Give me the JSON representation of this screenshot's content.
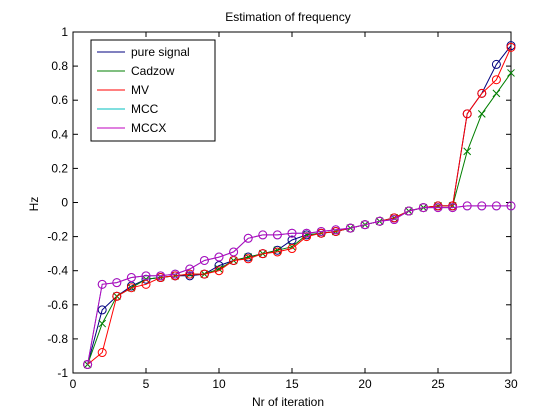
{
  "chart_data": {
    "type": "line",
    "title": "Estimation of frequency",
    "xlabel": "Nr of iteration",
    "ylabel": "Hz",
    "xlim": [
      0,
      30
    ],
    "ylim": [
      -1,
      1
    ],
    "xticks": [
      0,
      5,
      10,
      15,
      20,
      25,
      30
    ],
    "yticks": [
      -1,
      -0.8,
      -0.6,
      -0.4,
      -0.2,
      0,
      0.2,
      0.4,
      0.6,
      0.8,
      1
    ],
    "xtick_labels": [
      "0",
      "5",
      "10",
      "15",
      "20",
      "25",
      "30"
    ],
    "ytick_labels": [
      "-1",
      "-0.8",
      "-0.6",
      "-0.4",
      "-0.2",
      "0",
      "0.2",
      "0.4",
      "0.6",
      "0.8",
      "1"
    ],
    "grid": false,
    "legend_position": "top-left",
    "x": [
      1,
      2,
      3,
      4,
      5,
      6,
      7,
      8,
      9,
      10,
      11,
      12,
      13,
      14,
      15,
      16,
      17,
      18,
      19,
      20,
      21,
      22,
      23,
      24,
      25,
      26,
      27,
      28,
      29,
      30
    ],
    "series": [
      {
        "name": "pure signal",
        "color": "#00007f",
        "marker": "circle",
        "values": [
          -0.95,
          -0.63,
          -0.55,
          -0.49,
          -0.45,
          -0.44,
          -0.43,
          -0.43,
          -0.42,
          -0.37,
          -0.34,
          -0.32,
          -0.3,
          -0.28,
          -0.22,
          -0.19,
          -0.18,
          -0.17,
          -0.15,
          -0.13,
          -0.11,
          -0.09,
          -0.05,
          -0.03,
          -0.02,
          -0.02,
          0.52,
          0.64,
          0.81,
          0.92
        ]
      },
      {
        "name": "Cadzow",
        "color": "#007f00",
        "marker": "x",
        "values": [
          -0.95,
          -0.71,
          -0.55,
          -0.5,
          -0.45,
          -0.44,
          -0.43,
          -0.42,
          -0.42,
          -0.39,
          -0.34,
          -0.32,
          -0.3,
          -0.28,
          -0.26,
          -0.19,
          -0.18,
          -0.17,
          -0.15,
          -0.13,
          -0.11,
          -0.09,
          -0.05,
          -0.03,
          -0.02,
          -0.02,
          0.3,
          0.52,
          0.64,
          0.76
        ]
      },
      {
        "name": "MV",
        "color": "#ff0000",
        "marker": "circle",
        "values": [
          -0.95,
          -0.88,
          -0.55,
          -0.5,
          -0.48,
          -0.44,
          -0.43,
          -0.42,
          -0.42,
          -0.4,
          -0.34,
          -0.33,
          -0.3,
          -0.29,
          -0.27,
          -0.2,
          -0.18,
          -0.17,
          -0.15,
          -0.13,
          -0.11,
          -0.09,
          -0.05,
          -0.03,
          -0.02,
          -0.02,
          0.52,
          0.64,
          0.72,
          0.91
        ]
      },
      {
        "name": "MCC",
        "color": "#00bfbf",
        "marker": "circle",
        "values": [
          -0.95,
          -0.48,
          -0.47,
          -0.44,
          -0.43,
          -0.43,
          -0.42,
          -0.39,
          -0.34,
          -0.32,
          -0.29,
          -0.21,
          -0.19,
          -0.19,
          -0.18,
          -0.18,
          -0.17,
          -0.16,
          -0.15,
          -0.13,
          -0.11,
          -0.1,
          -0.05,
          -0.03,
          -0.03,
          -0.03,
          -0.02,
          -0.02,
          -0.02,
          -0.02
        ]
      },
      {
        "name": "MCCX",
        "color": "#bf00bf",
        "marker": "circle",
        "values": [
          -0.95,
          -0.48,
          -0.47,
          -0.44,
          -0.43,
          -0.43,
          -0.42,
          -0.39,
          -0.34,
          -0.32,
          -0.29,
          -0.21,
          -0.19,
          -0.19,
          -0.18,
          -0.18,
          -0.17,
          -0.16,
          -0.15,
          -0.13,
          -0.11,
          -0.1,
          -0.05,
          -0.03,
          -0.03,
          -0.03,
          -0.02,
          -0.02,
          -0.02,
          -0.02
        ]
      }
    ]
  }
}
